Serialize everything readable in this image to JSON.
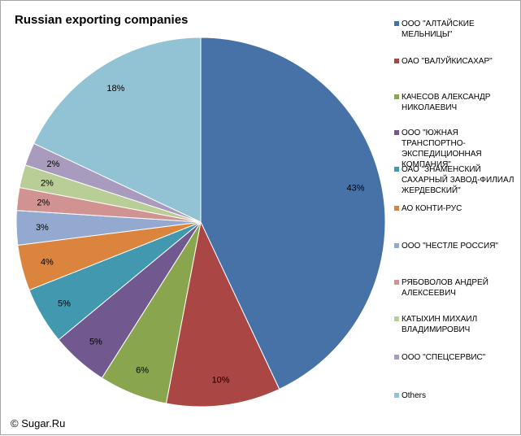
{
  "chart_data": {
    "type": "pie",
    "title": "Russian exporting companies",
    "legend_position": "right",
    "slices": [
      {
        "name": "ООО \"АЛТАЙСКИЕ МЕЛЬНИЦЫ\"",
        "value": 43,
        "label": "43%",
        "color": "#4672a8"
      },
      {
        "name": "ОАО \"ВАЛУЙКИСАХАР\"",
        "value": 10,
        "label": "10%",
        "color": "#aa4644"
      },
      {
        "name": "КАЧЕСОВ АЛЕКСАНДР НИКОЛАЕВИЧ",
        "value": 6,
        "label": "6%",
        "color": "#89a54e"
      },
      {
        "name": "ООО \"ЮЖНАЯ ТРАНСПОРТНО-ЭКСПЕДИЦИОННАЯ КОМПАНИЯ\"",
        "value": 5,
        "label": "5%",
        "color": "#71588f"
      },
      {
        "name": "ОАО \"ЗНАМЕНСКИЙ САХАРНЫЙ ЗАВОД-ФИЛИАЛ ЖЕРДЕВСКИЙ\"",
        "value": 5,
        "label": "5%",
        "color": "#4298af"
      },
      {
        "name": "АО КОНТИ-РУС",
        "value": 4,
        "label": "4%",
        "color": "#db843d"
      },
      {
        "name": "ООО \"НЕСТЛЕ РОССИЯ\"",
        "value": 3,
        "label": "3%",
        "color": "#93a9cf"
      },
      {
        "name": "РЯБОВОЛОВ АНДРЕЙ АЛЕКСЕЕВИЧ",
        "value": 2,
        "label": "2%",
        "color": "#d19392"
      },
      {
        "name": "КАТЫХИН МИХАИЛ ВЛАДИМИРОВИЧ",
        "value": 2,
        "label": "2%",
        "color": "#b9cd96"
      },
      {
        "name": "ООО \"СПЕЦСЕРВИС\"",
        "value": 2,
        "label": "2%",
        "color": "#a99bbd"
      },
      {
        "name": "Others",
        "value": 18,
        "label": "18%",
        "color": "#92c3d4"
      }
    ]
  },
  "footer": {
    "copyright": "© Sugar.Ru"
  }
}
